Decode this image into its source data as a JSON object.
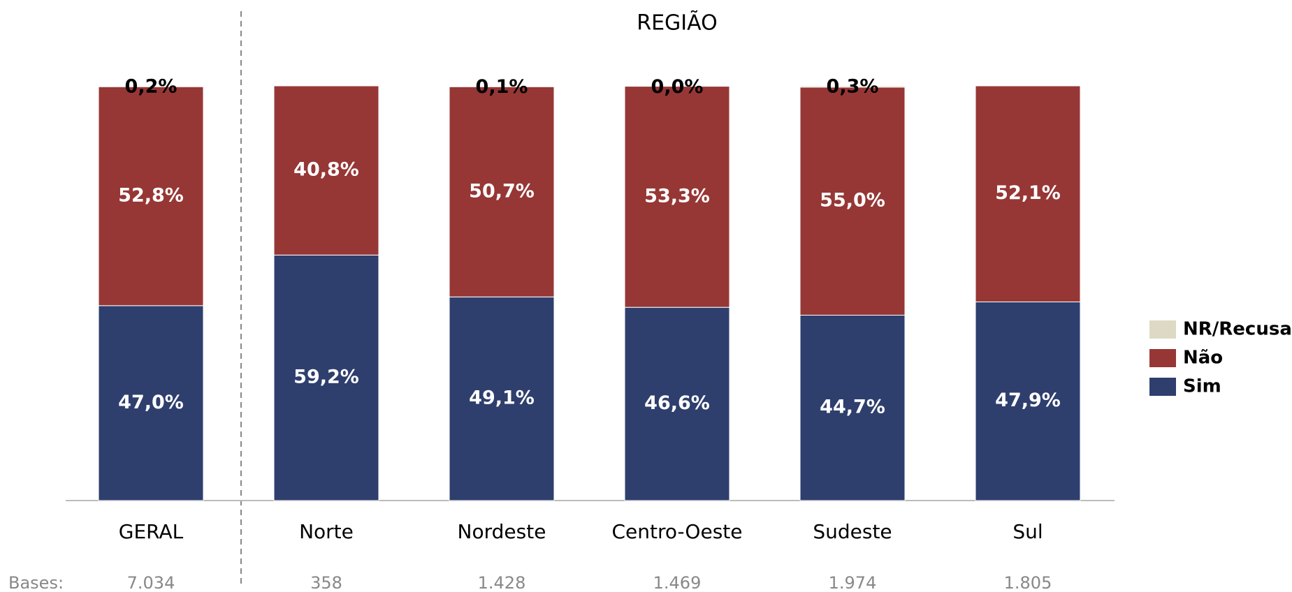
{
  "chart_data": {
    "type": "stacked-bar",
    "title": "REGIÃO",
    "categories": [
      "GERAL",
      "Norte",
      "Nordeste",
      "Centro-Oeste",
      "Sudeste",
      "Sul"
    ],
    "ylim": [
      0,
      100
    ],
    "series": [
      {
        "name": "Sim",
        "color": "#2e3f6e",
        "values": [
          47.0,
          59.2,
          49.1,
          46.6,
          44.7,
          47.9
        ],
        "value_labels": [
          "47,0%",
          "59,2%",
          "49,1%",
          "46,6%",
          "44,7%",
          "47,9%"
        ]
      },
      {
        "name": "Não",
        "color": "#963735",
        "values": [
          52.8,
          40.8,
          50.7,
          53.3,
          55.0,
          52.1
        ],
        "value_labels": [
          "52,8%",
          "40,8%",
          "50,7%",
          "53,3%",
          "55,0%",
          "52,1%"
        ]
      },
      {
        "name": "NR/Recusa",
        "color": "#ddd9c4",
        "values": [
          0.2,
          0,
          0.1,
          0.0,
          0.3,
          0
        ],
        "value_labels": [
          "0,2%",
          null,
          "0,1%",
          "0,0%",
          "0,3%",
          null
        ]
      }
    ],
    "bases_label": "Bases:",
    "bases": [
      "7.034",
      "358",
      "1.428",
      "1.469",
      "1.974",
      "1.805"
    ]
  }
}
